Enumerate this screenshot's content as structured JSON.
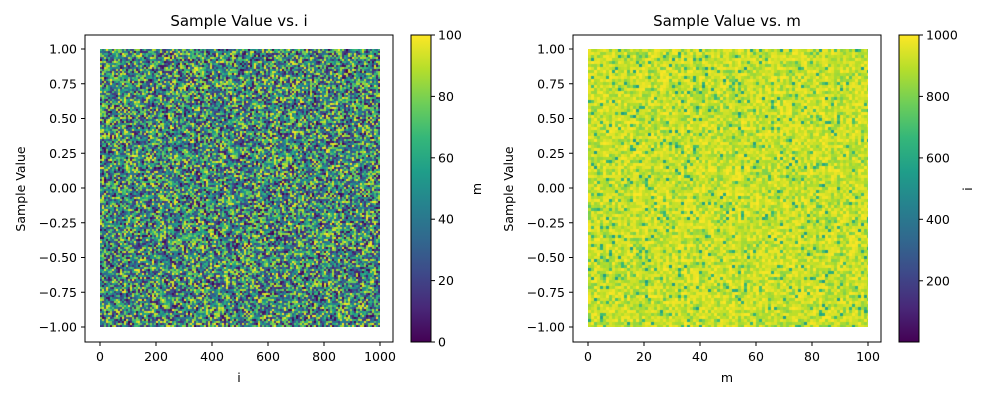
{
  "chart_data": [
    {
      "type": "scatter",
      "title": "Sample Value vs. i",
      "xlabel": "i",
      "ylabel": "Sample Value",
      "x_range": [
        0,
        1000
      ],
      "y_range": [
        -1.0,
        1.0
      ],
      "xlim": [
        -50,
        1050
      ],
      "ylim": [
        -1.1,
        1.1
      ],
      "x_ticks": [
        0,
        200,
        400,
        600,
        800,
        1000
      ],
      "x_tick_labels": [
        "0",
        "200",
        "400",
        "600",
        "800",
        "1000"
      ],
      "y_ticks": [
        -1.0,
        -0.75,
        -0.5,
        -0.25,
        0.0,
        0.25,
        0.5,
        0.75,
        1.0
      ],
      "y_tick_labels": [
        "−1.00",
        "−0.75",
        "−0.50",
        "−0.25",
        "0.00",
        "0.25",
        "0.50",
        "0.75",
        "1.00"
      ],
      "color_by": "m",
      "colorbar": {
        "label": "m",
        "cmap": "viridis",
        "range": [
          0,
          100
        ],
        "ticks": [
          0,
          20,
          40,
          60,
          80,
          100
        ],
        "tick_labels": [
          "0",
          "20",
          "40",
          "60",
          "80",
          "100"
        ]
      },
      "point_color_distribution": "uniform 0–100",
      "grid": false
    },
    {
      "type": "scatter",
      "title": "Sample Value vs. m",
      "xlabel": "m",
      "ylabel": "Sample Value",
      "x_range": [
        0,
        100
      ],
      "y_range": [
        -1.0,
        1.0
      ],
      "xlim": [
        -5,
        105
      ],
      "ylim": [
        -1.1,
        1.1
      ],
      "x_ticks": [
        0,
        20,
        40,
        60,
        80,
        100
      ],
      "x_tick_labels": [
        "0",
        "20",
        "40",
        "60",
        "80",
        "100"
      ],
      "y_ticks": [
        -1.0,
        -0.75,
        -0.5,
        -0.25,
        0.0,
        0.25,
        0.5,
        0.75,
        1.0
      ],
      "y_tick_labels": [
        "−1.00",
        "−0.75",
        "−0.50",
        "−0.25",
        "0.00",
        "0.25",
        "0.50",
        "0.75",
        "1.00"
      ],
      "color_by": "i",
      "colorbar": {
        "label": "i",
        "cmap": "viridis",
        "range": [
          1,
          1000
        ],
        "ticks": [
          200,
          400,
          600,
          800,
          1000
        ],
        "tick_labels": [
          "200",
          "400",
          "600",
          "800",
          "1000"
        ]
      },
      "point_color_distribution": "mostly 800–1000",
      "grid": false
    }
  ],
  "colors": {
    "viridis": [
      "#440154",
      "#482878",
      "#3e4989",
      "#31688e",
      "#26828e",
      "#1f9e89",
      "#35b779",
      "#6ece58",
      "#b5de2b",
      "#fde725"
    ],
    "frame": "#000000",
    "background": "#ffffff"
  }
}
